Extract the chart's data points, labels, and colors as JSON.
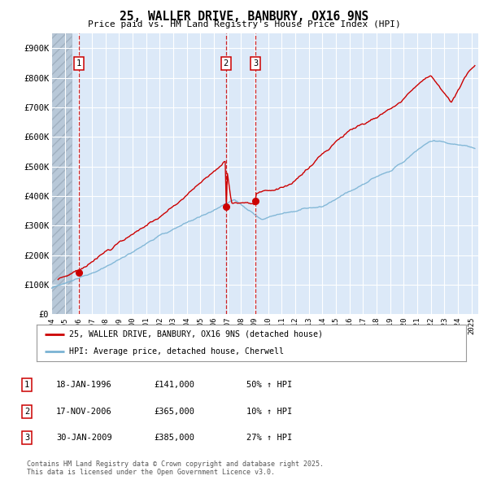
{
  "title": "25, WALLER DRIVE, BANBURY, OX16 9NS",
  "subtitle": "Price paid vs. HM Land Registry's House Price Index (HPI)",
  "ylim": [
    0,
    950000
  ],
  "yticks": [
    0,
    100000,
    200000,
    300000,
    400000,
    500000,
    600000,
    700000,
    800000,
    900000
  ],
  "ytick_labels": [
    "£0",
    "£100K",
    "£200K",
    "£300K",
    "£400K",
    "£500K",
    "£600K",
    "£700K",
    "£800K",
    "£900K"
  ],
  "xlim_start": 1994.0,
  "xlim_end": 2025.5,
  "hatch_end": 1995.5,
  "background_color": "#dce9f8",
  "grid_color": "#ffffff",
  "sale_color": "#cc0000",
  "hpi_color": "#7ab3d4",
  "transaction_lines": [
    1996.04,
    2006.88,
    2009.08
  ],
  "transaction_labels": [
    "1",
    "2",
    "3"
  ],
  "sale_points_x": [
    1996.04,
    2006.88,
    2009.08
  ],
  "sale_points_y": [
    141000,
    365000,
    385000
  ],
  "legend_line1": "25, WALLER DRIVE, BANBURY, OX16 9NS (detached house)",
  "legend_line2": "HPI: Average price, detached house, Cherwell",
  "table_entries": [
    {
      "num": "1",
      "date": "18-JAN-1996",
      "price": "£141,000",
      "hpi": "50% ↑ HPI"
    },
    {
      "num": "2",
      "date": "17-NOV-2006",
      "price": "£365,000",
      "hpi": "10% ↑ HPI"
    },
    {
      "num": "3",
      "date": "30-JAN-2009",
      "price": "£385,000",
      "hpi": "27% ↑ HPI"
    }
  ],
  "footer": "Contains HM Land Registry data © Crown copyright and database right 2025.\nThis data is licensed under the Open Government Licence v3.0."
}
